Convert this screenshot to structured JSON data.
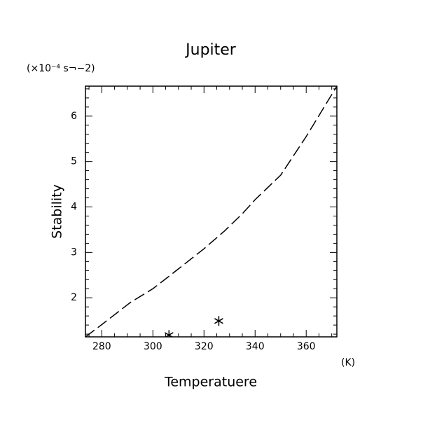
{
  "chart_data": {
    "type": "line",
    "title": "Jupiter",
    "y_unit": "(×10⁻⁴ s¬−2)",
    "x_unit": "(K)",
    "xlabel": "Temperatuere",
    "ylabel": "Stability",
    "xlim": [
      273.6,
      372
    ],
    "ylim": [
      1.14,
      6.66
    ],
    "xticks": [
      280,
      300,
      320,
      340,
      360
    ],
    "yticks": [
      2,
      3,
      4,
      5,
      6
    ],
    "xminorticks": [
      275,
      285,
      290,
      295,
      305,
      310,
      315,
      325,
      330,
      335,
      345,
      350,
      355,
      365,
      370
    ],
    "yminorticks": [
      1.2,
      1.4,
      1.6,
      1.8,
      2.2,
      2.4,
      2.6,
      2.8,
      3.2,
      3.4,
      3.6,
      3.8,
      4.2,
      4.4,
      4.6,
      4.8,
      5.2,
      5.4,
      5.6,
      5.8,
      6.2,
      6.4,
      6.6
    ],
    "series": [
      {
        "color": "#000000",
        "dash": true,
        "x": [
          273.6,
          280,
          291,
          300,
          306,
          320,
          328,
          335,
          340,
          350,
          360,
          372
        ],
        "values": [
          1.14,
          1.41,
          1.89,
          2.2,
          2.46,
          3.08,
          3.47,
          3.85,
          4.16,
          4.7,
          5.55,
          6.66
        ]
      }
    ],
    "points": {
      "color": "#000000",
      "x": [
        325.8,
        306.3
      ],
      "values": [
        1.49,
        1.18
      ]
    }
  }
}
